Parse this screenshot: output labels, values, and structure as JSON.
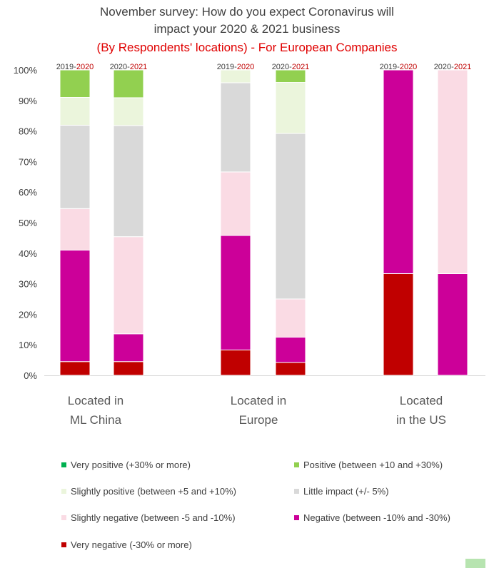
{
  "title": {
    "line1": "November survey: How do you expect Coronavirus will",
    "line2": "impact your 2020 & 2021 business",
    "line3": "(By Respondents' locations) - For European Companies"
  },
  "chart_data": {
    "type": "bar",
    "stacked": true,
    "ylim": [
      0,
      100
    ],
    "yticks": [
      "0%",
      "10%",
      "20%",
      "30%",
      "40%",
      "50%",
      "60%",
      "70%",
      "80%",
      "90%",
      "100%"
    ],
    "grid": false,
    "legend_position": "bottom",
    "groups": [
      {
        "label_lines": [
          "Located in",
          "ML China"
        ],
        "bars": [
          {
            "label_prefix": "2019-",
            "label_suffix": "2020",
            "values": [
              4.5,
              36.5,
              13.6,
              27.3,
              9.1,
              9.0,
              0
            ]
          },
          {
            "label_prefix": "2020-",
            "label_suffix": "2021",
            "values": [
              4.5,
              9.1,
              31.8,
              36.4,
              9.1,
              9.1,
              0
            ]
          }
        ]
      },
      {
        "label_lines": [
          "Located in",
          "Europe"
        ],
        "bars": [
          {
            "label_prefix": "2019-",
            "label_suffix": "2020",
            "values": [
              8.3,
              37.5,
              20.8,
              29.2,
              4.2,
              0,
              0
            ]
          },
          {
            "label_prefix": "2020-",
            "label_suffix": "2021",
            "values": [
              4.2,
              8.3,
              12.5,
              54.2,
              16.7,
              4.1,
              0
            ]
          }
        ]
      },
      {
        "label_lines": [
          "Located",
          "in the US"
        ],
        "bars": [
          {
            "label_prefix": "2019-",
            "label_suffix": "2020",
            "values": [
              33.3,
              66.7,
              0,
              0,
              0,
              0,
              0
            ]
          },
          {
            "label_prefix": "2020-",
            "label_suffix": "2021",
            "values": [
              0,
              33.3,
              66.7,
              0,
              0,
              0,
              0
            ]
          }
        ]
      }
    ],
    "series": [
      {
        "name": "Very negative (-30% or more)",
        "color": "#c00000"
      },
      {
        "name": "Negative (between -10% and -30%)",
        "color": "#cc0099"
      },
      {
        "name": "Slightly negative (between -5 and -10%)",
        "color": "#fadbe4"
      },
      {
        "name": "Little impact (+/- 5%)",
        "color": "#d9d9d9"
      },
      {
        "name": "Slightly positive (between +5 and +10%)",
        "color": "#ebf5dc"
      },
      {
        "name": "Positive (between +10 and +30%)",
        "color": "#92d050"
      },
      {
        "name": "Very positive (+30% or more)",
        "color": "#00b050"
      }
    ]
  }
}
